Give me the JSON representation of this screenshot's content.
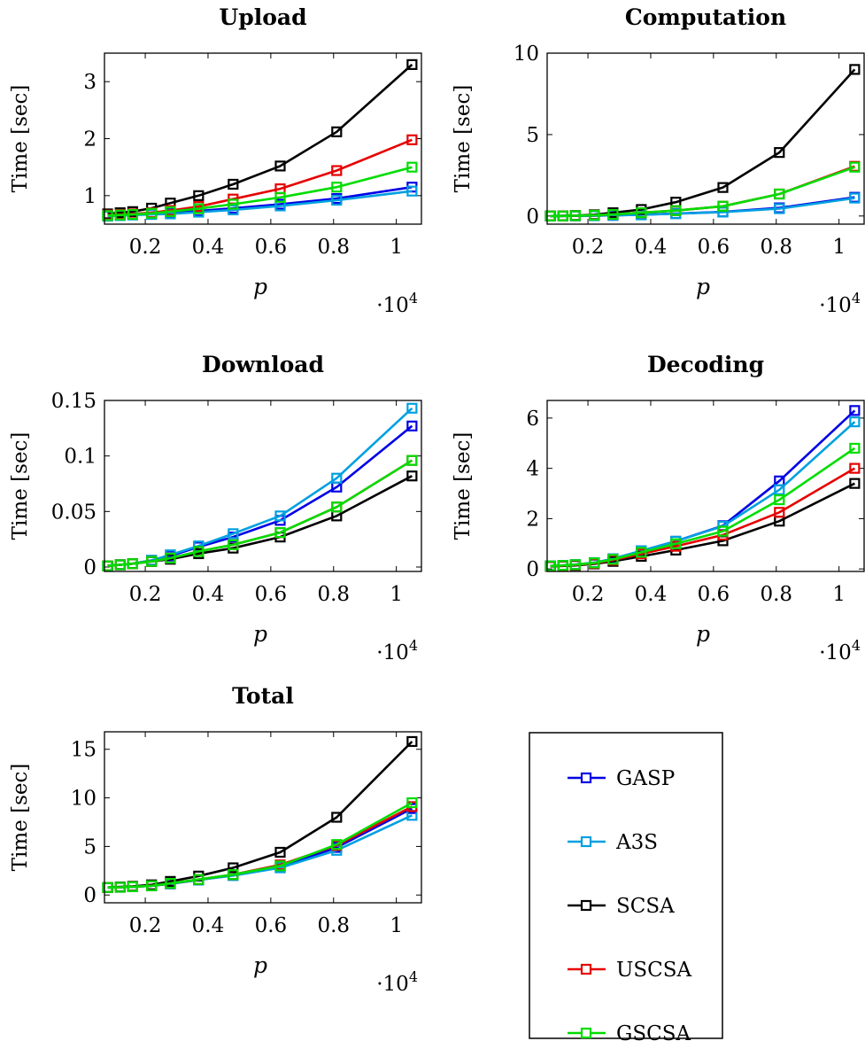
{
  "x_multiplier_label": "·10",
  "x_multiplier_exp": "4",
  "legend": {
    "entries": [
      "GASP",
      "A3S",
      "SCSA",
      "USCSA",
      "GSCSA"
    ]
  },
  "colors": {
    "GASP": "#0000e6",
    "A3S": "#00a0e0",
    "SCSA": "#000000",
    "USCSA": "#e60000",
    "GSCSA": "#00dd00"
  },
  "chart_data": [
    {
      "type": "line",
      "title": "Upload",
      "xlabel": "p",
      "ylabel": "Time [sec]",
      "xlim": [
        700,
        10800
      ],
      "ylim": [
        0.5,
        3.5
      ],
      "xticks": [
        2000,
        4000,
        6000,
        8000,
        10000
      ],
      "xtick_labels": [
        "0.2",
        "0.4",
        "0.6",
        "0.8",
        "1"
      ],
      "yticks": [
        1,
        2,
        3
      ],
      "ytick_labels": [
        "1",
        "2",
        "3"
      ],
      "x": [
        800,
        1200,
        1600,
        2200,
        2800,
        3700,
        4800,
        6300,
        8100,
        10500
      ],
      "series": [
        {
          "name": "GASP",
          "values": [
            0.65,
            0.66,
            0.67,
            0.68,
            0.7,
            0.73,
            0.78,
            0.85,
            0.95,
            1.15
          ]
        },
        {
          "name": "A3S",
          "values": [
            0.64,
            0.65,
            0.66,
            0.67,
            0.68,
            0.71,
            0.75,
            0.82,
            0.92,
            1.08
          ]
        },
        {
          "name": "SCSA",
          "values": [
            0.68,
            0.7,
            0.72,
            0.78,
            0.87,
            1.0,
            1.2,
            1.52,
            2.12,
            3.3
          ]
        },
        {
          "name": "USCSA",
          "values": [
            0.66,
            0.67,
            0.68,
            0.7,
            0.74,
            0.81,
            0.94,
            1.12,
            1.44,
            1.98
          ]
        },
        {
          "name": "GSCSA",
          "values": [
            0.65,
            0.66,
            0.67,
            0.69,
            0.72,
            0.77,
            0.85,
            0.97,
            1.15,
            1.5
          ]
        }
      ]
    },
    {
      "type": "line",
      "title": "Computation",
      "xlabel": "p",
      "ylabel": "Time [sec]",
      "xlim": [
        700,
        10800
      ],
      "ylim": [
        -0.5,
        10
      ],
      "xticks": [
        2000,
        4000,
        6000,
        8000,
        10000
      ],
      "xtick_labels": [
        "0.2",
        "0.4",
        "0.6",
        "0.8",
        "1"
      ],
      "yticks": [
        0,
        5,
        10
      ],
      "ytick_labels": [
        "0",
        "5",
        "10"
      ],
      "x": [
        800,
        1200,
        1600,
        2200,
        2800,
        3700,
        4800,
        6300,
        8100,
        10500
      ],
      "series": [
        {
          "name": "GASP",
          "values": [
            0.0,
            0.0,
            0.01,
            0.02,
            0.04,
            0.08,
            0.15,
            0.25,
            0.5,
            1.15
          ]
        },
        {
          "name": "A3S",
          "values": [
            0.0,
            0.0,
            0.01,
            0.02,
            0.04,
            0.07,
            0.14,
            0.24,
            0.45,
            1.1
          ]
        },
        {
          "name": "SCSA",
          "values": [
            0.0,
            0.01,
            0.03,
            0.08,
            0.2,
            0.4,
            0.85,
            1.75,
            3.9,
            9.0
          ]
        },
        {
          "name": "USCSA",
          "values": [
            0.0,
            0.0,
            0.02,
            0.05,
            0.1,
            0.2,
            0.33,
            0.6,
            1.35,
            3.05
          ]
        },
        {
          "name": "GSCSA",
          "values": [
            0.0,
            0.0,
            0.02,
            0.05,
            0.1,
            0.2,
            0.33,
            0.6,
            1.35,
            3.0
          ]
        }
      ]
    },
    {
      "type": "line",
      "title": "Download",
      "xlabel": "p",
      "ylabel": "Time [sec]",
      "xlim": [
        700,
        10800
      ],
      "ylim": [
        -0.004,
        0.15
      ],
      "xticks": [
        2000,
        4000,
        6000,
        8000,
        10000
      ],
      "xtick_labels": [
        "0.2",
        "0.4",
        "0.6",
        "0.8",
        "1"
      ],
      "yticks": [
        0,
        0.05,
        0.1,
        0.15
      ],
      "ytick_labels": [
        "0",
        "0.05",
        "0.1",
        "0.15"
      ],
      "x": [
        800,
        1200,
        1600,
        2200,
        2800,
        3700,
        4800,
        6300,
        8100,
        10500
      ],
      "series": [
        {
          "name": "GASP",
          "values": [
            0.001,
            0.002,
            0.003,
            0.006,
            0.01,
            0.018,
            0.027,
            0.042,
            0.072,
            0.127
          ]
        },
        {
          "name": "A3S",
          "values": [
            0.001,
            0.002,
            0.003,
            0.006,
            0.011,
            0.019,
            0.03,
            0.046,
            0.08,
            0.143
          ]
        },
        {
          "name": "SCSA",
          "values": [
            0.001,
            0.002,
            0.003,
            0.005,
            0.007,
            0.012,
            0.017,
            0.027,
            0.046,
            0.082
          ]
        },
        {
          "name": "USCSA",
          "values": [
            0.001,
            0.002,
            0.003,
            0.005,
            0.008,
            0.014,
            0.02,
            0.031,
            0.054,
            0.096
          ]
        },
        {
          "name": "GSCSA",
          "values": [
            0.001,
            0.002,
            0.003,
            0.005,
            0.008,
            0.014,
            0.02,
            0.031,
            0.054,
            0.096
          ]
        }
      ]
    },
    {
      "type": "line",
      "title": "Decoding",
      "xlabel": "p",
      "ylabel": "Time [sec]",
      "xlim": [
        700,
        10800
      ],
      "ylim": [
        -0.1,
        6.7
      ],
      "xticks": [
        2000,
        4000,
        6000,
        8000,
        10000
      ],
      "xtick_labels": [
        "0.2",
        "0.4",
        "0.6",
        "0.8",
        "1"
      ],
      "yticks": [
        0,
        2,
        4,
        6
      ],
      "ytick_labels": [
        "0",
        "2",
        "4",
        "6"
      ],
      "x": [
        800,
        1200,
        1600,
        2200,
        2800,
        3700,
        4800,
        6300,
        8100,
        10500
      ],
      "series": [
        {
          "name": "GASP",
          "values": [
            0.12,
            0.14,
            0.17,
            0.25,
            0.4,
            0.72,
            1.1,
            1.72,
            3.5,
            6.3
          ]
        },
        {
          "name": "A3S",
          "values": [
            0.12,
            0.14,
            0.17,
            0.25,
            0.4,
            0.72,
            1.1,
            1.7,
            3.15,
            5.85
          ]
        },
        {
          "name": "SCSA",
          "values": [
            0.1,
            0.12,
            0.14,
            0.2,
            0.3,
            0.5,
            0.75,
            1.12,
            1.9,
            3.4
          ]
        },
        {
          "name": "USCSA",
          "values": [
            0.11,
            0.13,
            0.16,
            0.22,
            0.35,
            0.6,
            0.9,
            1.35,
            2.25,
            4.0
          ]
        },
        {
          "name": "GSCSA",
          "values": [
            0.12,
            0.14,
            0.17,
            0.24,
            0.38,
            0.66,
            1.0,
            1.5,
            2.75,
            4.8
          ]
        }
      ]
    },
    {
      "type": "line",
      "title": "Total",
      "xlabel": "p",
      "ylabel": "Time [sec]",
      "xlim": [
        700,
        10800
      ],
      "ylim": [
        -0.8,
        16.8
      ],
      "xticks": [
        2000,
        4000,
        6000,
        8000,
        10000
      ],
      "xtick_labels": [
        "0.2",
        "0.4",
        "0.6",
        "0.8",
        "1"
      ],
      "yticks": [
        0,
        5,
        10,
        15
      ],
      "ytick_labels": [
        "0",
        "5",
        "10",
        "15"
      ],
      "x": [
        800,
        1200,
        1600,
        2200,
        2800,
        3700,
        4800,
        6300,
        8100,
        10500
      ],
      "series": [
        {
          "name": "GASP",
          "values": [
            0.77,
            0.8,
            0.85,
            0.95,
            1.15,
            1.55,
            2.05,
            2.85,
            4.9,
            8.9
          ]
        },
        {
          "name": "A3S",
          "values": [
            0.77,
            0.8,
            0.85,
            0.95,
            1.15,
            1.55,
            2.0,
            2.8,
            4.6,
            8.2
          ]
        },
        {
          "name": "SCSA",
          "values": [
            0.78,
            0.83,
            0.9,
            1.05,
            1.4,
            1.95,
            2.8,
            4.4,
            8.0,
            15.8
          ]
        },
        {
          "name": "USCSA",
          "values": [
            0.77,
            0.8,
            0.85,
            0.95,
            1.2,
            1.6,
            2.1,
            3.1,
            5.1,
            9.1
          ]
        },
        {
          "name": "GSCSA",
          "values": [
            0.77,
            0.8,
            0.85,
            0.95,
            1.2,
            1.6,
            2.1,
            3.0,
            5.2,
            9.5
          ]
        }
      ]
    }
  ]
}
